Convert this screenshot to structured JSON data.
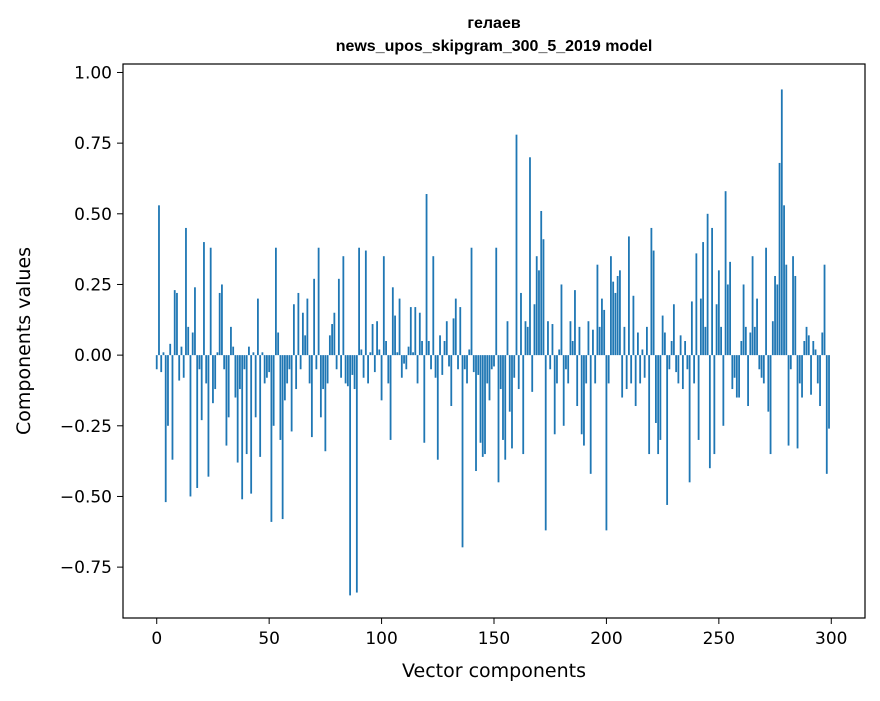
{
  "chart_data": {
    "type": "bar",
    "title_line1": "гелаев",
    "title_line2": "news_upos_skipgram_300_5_2019 model",
    "xlabel": "Vector components",
    "ylabel": "Components values",
    "xlim": [
      -15,
      315
    ],
    "ylim": [
      -0.93,
      1.03
    ],
    "xticks": [
      {
        "value": 0,
        "label": "0"
      },
      {
        "value": 50,
        "label": "50"
      },
      {
        "value": 100,
        "label": "100"
      },
      {
        "value": 150,
        "label": "150"
      },
      {
        "value": 200,
        "label": "200"
      },
      {
        "value": 250,
        "label": "250"
      },
      {
        "value": 300,
        "label": "300"
      }
    ],
    "yticks": [
      {
        "value": 1.0,
        "label": "1.00"
      },
      {
        "value": 0.75,
        "label": "0.75"
      },
      {
        "value": 0.5,
        "label": "0.50"
      },
      {
        "value": 0.25,
        "label": "0.25"
      },
      {
        "value": 0.0,
        "label": "0.00"
      },
      {
        "value": -0.25,
        "label": "−0.25"
      },
      {
        "value": -0.5,
        "label": "−0.50"
      },
      {
        "value": -0.75,
        "label": "−0.75"
      }
    ],
    "bar_color": "#1f77b4",
    "values": [
      -0.05,
      0.53,
      -0.06,
      0.01,
      -0.52,
      -0.25,
      0.04,
      -0.37,
      0.23,
      0.22,
      -0.09,
      0.03,
      -0.08,
      0.45,
      0.1,
      -0.5,
      0.08,
      0.24,
      -0.47,
      -0.05,
      -0.23,
      0.4,
      -0.1,
      -0.43,
      0.38,
      -0.17,
      -0.12,
      0.01,
      0.22,
      0.25,
      -0.05,
      -0.32,
      -0.22,
      0.1,
      0.03,
      -0.15,
      -0.38,
      -0.12,
      -0.51,
      -0.05,
      -0.35,
      0.03,
      -0.49,
      0.01,
      -0.22,
      0.2,
      -0.36,
      0.01,
      -0.1,
      -0.08,
      -0.06,
      -0.59,
      -0.25,
      0.38,
      0.08,
      -0.3,
      -0.58,
      -0.16,
      -0.1,
      -0.05,
      -0.27,
      0.18,
      -0.12,
      0.22,
      -0.05,
      0.15,
      0.07,
      0.2,
      -0.1,
      -0.29,
      0.27,
      -0.05,
      0.38,
      -0.22,
      -0.12,
      -0.34,
      -0.1,
      0.07,
      0.11,
      0.15,
      -0.05,
      0.27,
      -0.08,
      0.35,
      -0.1,
      -0.11,
      -0.85,
      -0.07,
      -0.12,
      -0.84,
      0.38,
      0.02,
      -0.08,
      0.37,
      -0.1,
      0.01,
      0.11,
      -0.06,
      0.12,
      0.02,
      -0.16,
      0.35,
      0.05,
      -0.1,
      -0.3,
      0.24,
      0.14,
      0.01,
      0.2,
      -0.08,
      -0.03,
      -0.05,
      0.03,
      0.17,
      0.01,
      0.17,
      -0.1,
      0.15,
      0.05,
      -0.31,
      0.57,
      0.05,
      -0.05,
      0.35,
      -0.08,
      -0.37,
      0.07,
      -0.07,
      0.05,
      0.12,
      -0.04,
      -0.18,
      0.13,
      0.2,
      -0.05,
      0.17,
      -0.68,
      -0.05,
      -0.1,
      0.02,
      0.38,
      -0.06,
      -0.41,
      -0.07,
      -0.31,
      -0.36,
      -0.35,
      -0.1,
      -0.16,
      -0.05,
      -0.04,
      0.38,
      -0.45,
      -0.12,
      -0.3,
      -0.37,
      0.12,
      -0.2,
      -0.33,
      -0.08,
      0.78,
      -0.12,
      0.22,
      -0.35,
      0.12,
      0.1,
      0.7,
      -0.13,
      0.18,
      0.35,
      0.3,
      0.51,
      0.41,
      -0.62,
      0.12,
      -0.05,
      0.11,
      -0.28,
      -0.1,
      0.02,
      0.25,
      -0.25,
      -0.05,
      -0.1,
      0.12,
      0.05,
      0.23,
      -0.18,
      0.1,
      -0.28,
      -0.32,
      -0.1,
      0.12,
      -0.42,
      0.09,
      -0.1,
      0.32,
      0.1,
      0.2,
      0.16,
      -0.62,
      -0.1,
      0.35,
      0.26,
      0.22,
      0.28,
      0.3,
      -0.15,
      0.1,
      -0.12,
      0.42,
      -0.1,
      0.21,
      -0.18,
      0.08,
      -0.1,
      0.02,
      -0.08,
      0.1,
      -0.35,
      0.45,
      0.37,
      -0.24,
      -0.35,
      -0.3,
      0.14,
      0.08,
      -0.53,
      -0.05,
      0.05,
      0.18,
      -0.06,
      -0.1,
      0.07,
      -0.12,
      0.05,
      -0.05,
      -0.45,
      0.19,
      -0.1,
      0.36,
      -0.3,
      0.2,
      0.4,
      0.1,
      0.5,
      -0.4,
      0.45,
      -0.35,
      0.18,
      0.3,
      0.1,
      -0.25,
      0.58,
      0.25,
      0.33,
      -0.12,
      -0.08,
      -0.15,
      -0.15,
      0.05,
      0.25,
      0.1,
      -0.18,
      0.08,
      0.35,
      0.1,
      0.2,
      -0.05,
      -0.08,
      -0.1,
      0.38,
      -0.2,
      -0.35,
      0.12,
      0.28,
      0.25,
      0.68,
      0.94,
      0.53,
      0.32,
      -0.32,
      -0.05,
      0.35,
      0.28,
      -0.33,
      -0.1,
      -0.15,
      0.05,
      0.1,
      0.07,
      -0.14,
      0.05,
      0.02,
      -0.1,
      -0.18,
      0.08,
      0.32,
      -0.42,
      -0.26
    ]
  }
}
